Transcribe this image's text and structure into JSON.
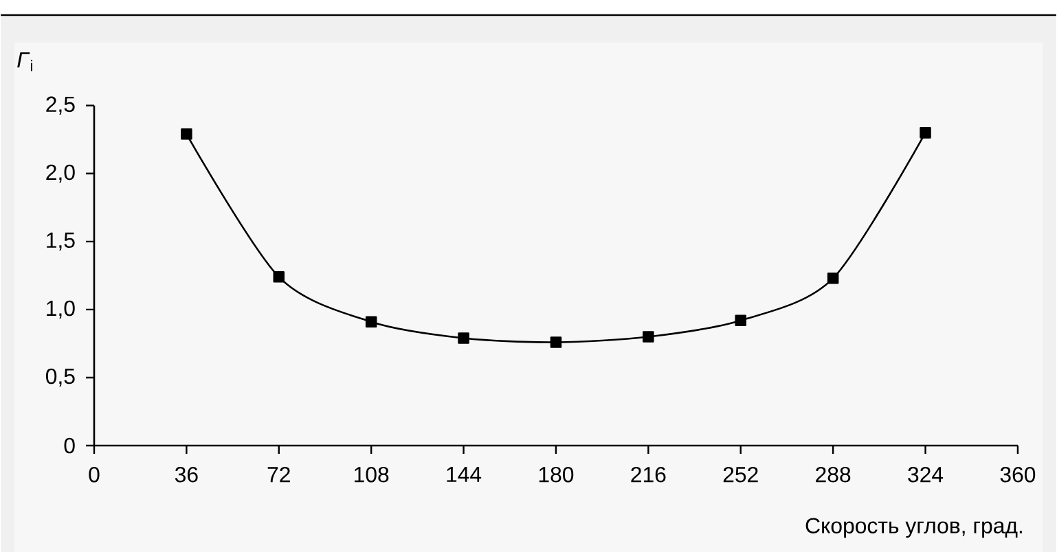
{
  "chart_data": {
    "type": "line",
    "ylabel": "*Г*$_{i}$",
    "xlabel": "Скорость углов, град.",
    "x": [
      36,
      72,
      108,
      144,
      180,
      216,
      252,
      288,
      324
    ],
    "series": [
      {
        "color": "#000000",
        "values": [
          2.29,
          1.24,
          0.91,
          0.79,
          0.76,
          0.8,
          0.92,
          1.23,
          2.3
        ]
      }
    ],
    "xlim": [
      0,
      360
    ],
    "xticks": [
      0,
      36,
      72,
      108,
      144,
      180,
      216,
      252,
      288,
      324,
      360
    ],
    "ylim": [
      0,
      2.5
    ],
    "yticks": [
      {
        "value": 0,
        "label": "0"
      },
      {
        "value": 0.5,
        "label": "0,5"
      },
      {
        "value": 1,
        "label": "1,0"
      },
      {
        "value": 1.5,
        "label": "1,5"
      },
      {
        "value": 2,
        "label": "2,0"
      },
      {
        "value": 2.5,
        "label": "2,5"
      }
    ],
    "marker": "square",
    "line_style": "solid"
  }
}
